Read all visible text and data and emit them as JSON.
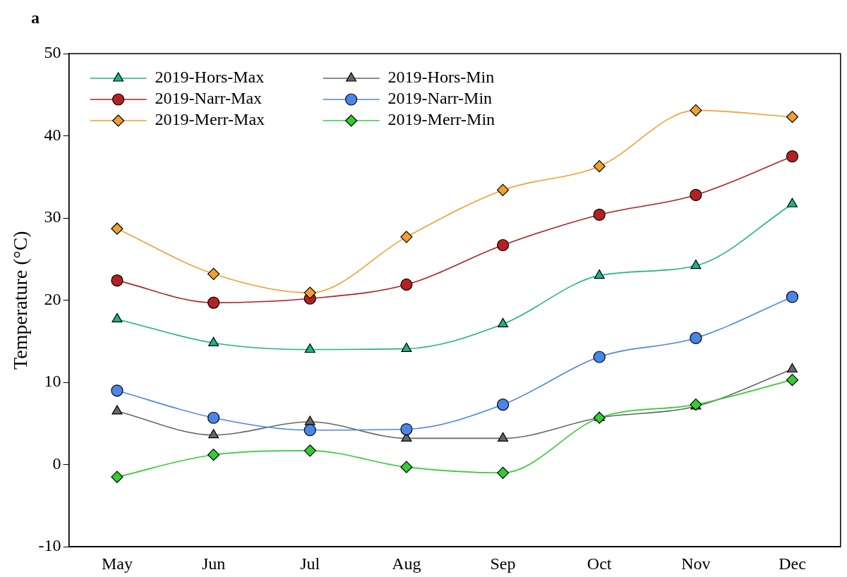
{
  "chart_data": {
    "type": "line",
    "ylabel": "Temperature (°C)",
    "annotations": [
      "a"
    ],
    "categories": [
      "May",
      "Jun",
      "Jul",
      "Aug",
      "Sep",
      "Oct",
      "Nov",
      "Dec"
    ],
    "ylim": [
      -10,
      50
    ],
    "yticks": [
      -10,
      0,
      10,
      20,
      30,
      40,
      50
    ],
    "grid": false,
    "legend": "top left",
    "series": [
      {
        "name": "2019-Hors-Max",
        "color": "#20b38a",
        "marker": "triangle",
        "values": [
          17.7,
          14.8,
          14.0,
          14.1,
          17.1,
          23.0,
          24.2,
          31.7
        ]
      },
      {
        "name": "2019-Narr-Max",
        "color": "#b22222",
        "marker": "circle",
        "values": [
          22.4,
          19.7,
          20.2,
          21.9,
          26.7,
          30.4,
          32.8,
          37.5
        ]
      },
      {
        "name": "2019-Merr-Max",
        "color": "#f0a030",
        "marker": "diamond",
        "values": [
          28.7,
          23.2,
          20.9,
          27.7,
          33.4,
          36.3,
          43.1,
          42.3
        ]
      },
      {
        "name": "2019-Hors-Min",
        "color": "#666666",
        "marker": "triangle",
        "values": [
          6.5,
          3.6,
          5.2,
          3.2,
          3.2,
          5.7,
          7.1,
          11.6
        ]
      },
      {
        "name": "2019-Narr-Min",
        "color": "#4a86e8",
        "marker": "circle",
        "values": [
          9.0,
          5.7,
          4.2,
          4.3,
          7.3,
          13.1,
          15.4,
          20.4
        ]
      },
      {
        "name": "2019-Merr-Min",
        "color": "#33cc33",
        "marker": "diamond",
        "values": [
          -1.5,
          1.2,
          1.7,
          -0.3,
          -1.0,
          5.7,
          7.3,
          10.3
        ]
      }
    ]
  }
}
